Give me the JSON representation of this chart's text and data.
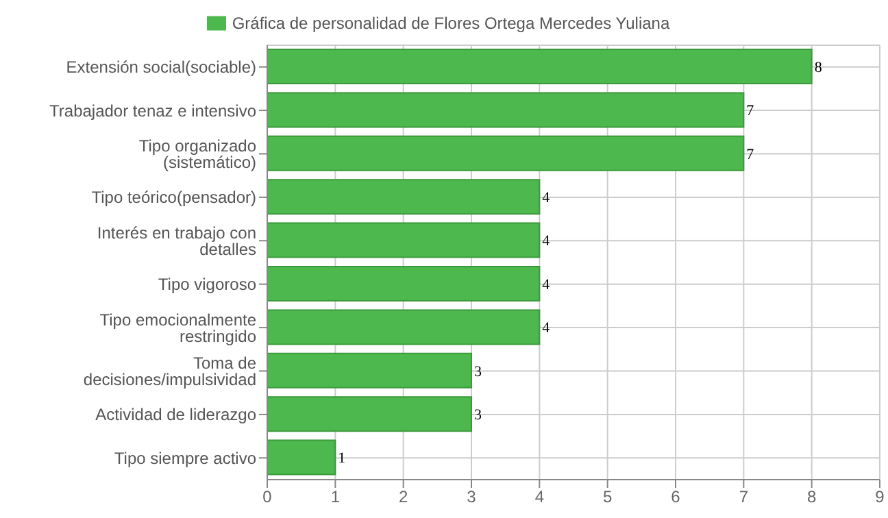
{
  "chart_data": {
    "type": "bar",
    "orientation": "horizontal",
    "categories": [
      "Extensión social(sociable)",
      "Trabajador tenaz e intensivo",
      "Tipo organizado (sistemático)",
      "Tipo teórico(pensador)",
      "Interés en trabajo con detalles",
      "Tipo vigoroso",
      "Tipo emocionalmente restringido",
      "Toma de decisiones/impulsividad",
      "Actividad de liderazgo",
      "Tipo siempre activo"
    ],
    "series": [
      {
        "name": "Gráfica de personalidad de Flores Ortega Mercedes Yuliana",
        "color": "#4db84d",
        "values": [
          8,
          7,
          7,
          4,
          4,
          4,
          4,
          3,
          3,
          1
        ]
      }
    ],
    "xlim": [
      0,
      9
    ],
    "xticks": [
      0,
      1,
      2,
      3,
      4,
      5,
      6,
      7,
      8,
      9
    ],
    "grid": true,
    "legend": "top",
    "data_labels": true
  }
}
